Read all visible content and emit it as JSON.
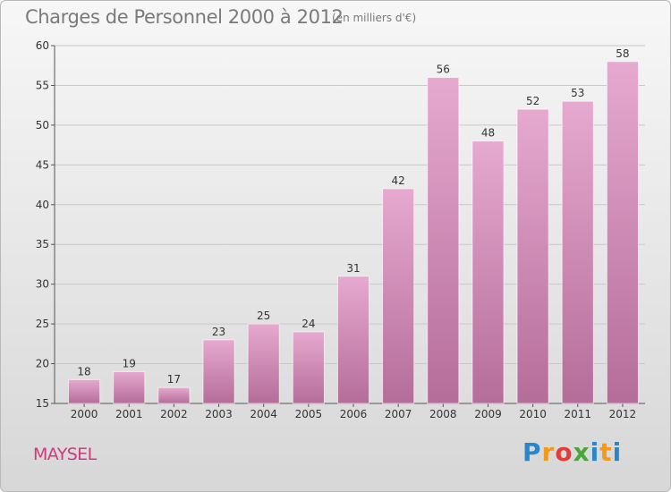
{
  "header": {
    "title": "Charges de Personnel 2000 à 2012",
    "unit": "(en milliers d'€)"
  },
  "commune": "MAYSEL",
  "logo": {
    "letters": [
      "P",
      "r",
      "o",
      "x",
      "i",
      "t",
      "i"
    ],
    "text": "Proxiti"
  },
  "colors": {
    "bar_top": "#e6a9cf",
    "bar_bottom": "#b46d99",
    "commune": "#cc3b7e",
    "grid": "#c8c8c8"
  },
  "chart_data": {
    "type": "bar",
    "title": "Charges de Personnel 2000 à 2012",
    "subtitle": "(en milliers d'€)",
    "categories": [
      "2000",
      "2001",
      "2002",
      "2003",
      "2004",
      "2005",
      "2006",
      "2007",
      "2008",
      "2009",
      "2010",
      "2011",
      "2012"
    ],
    "values": [
      18,
      19,
      17,
      23,
      25,
      24,
      31,
      42,
      56,
      48,
      52,
      53,
      58
    ],
    "ylim": [
      15,
      60
    ],
    "yticks": [
      15,
      20,
      25,
      30,
      35,
      40,
      45,
      50,
      55,
      60
    ],
    "grid": true,
    "data_labels": true
  }
}
